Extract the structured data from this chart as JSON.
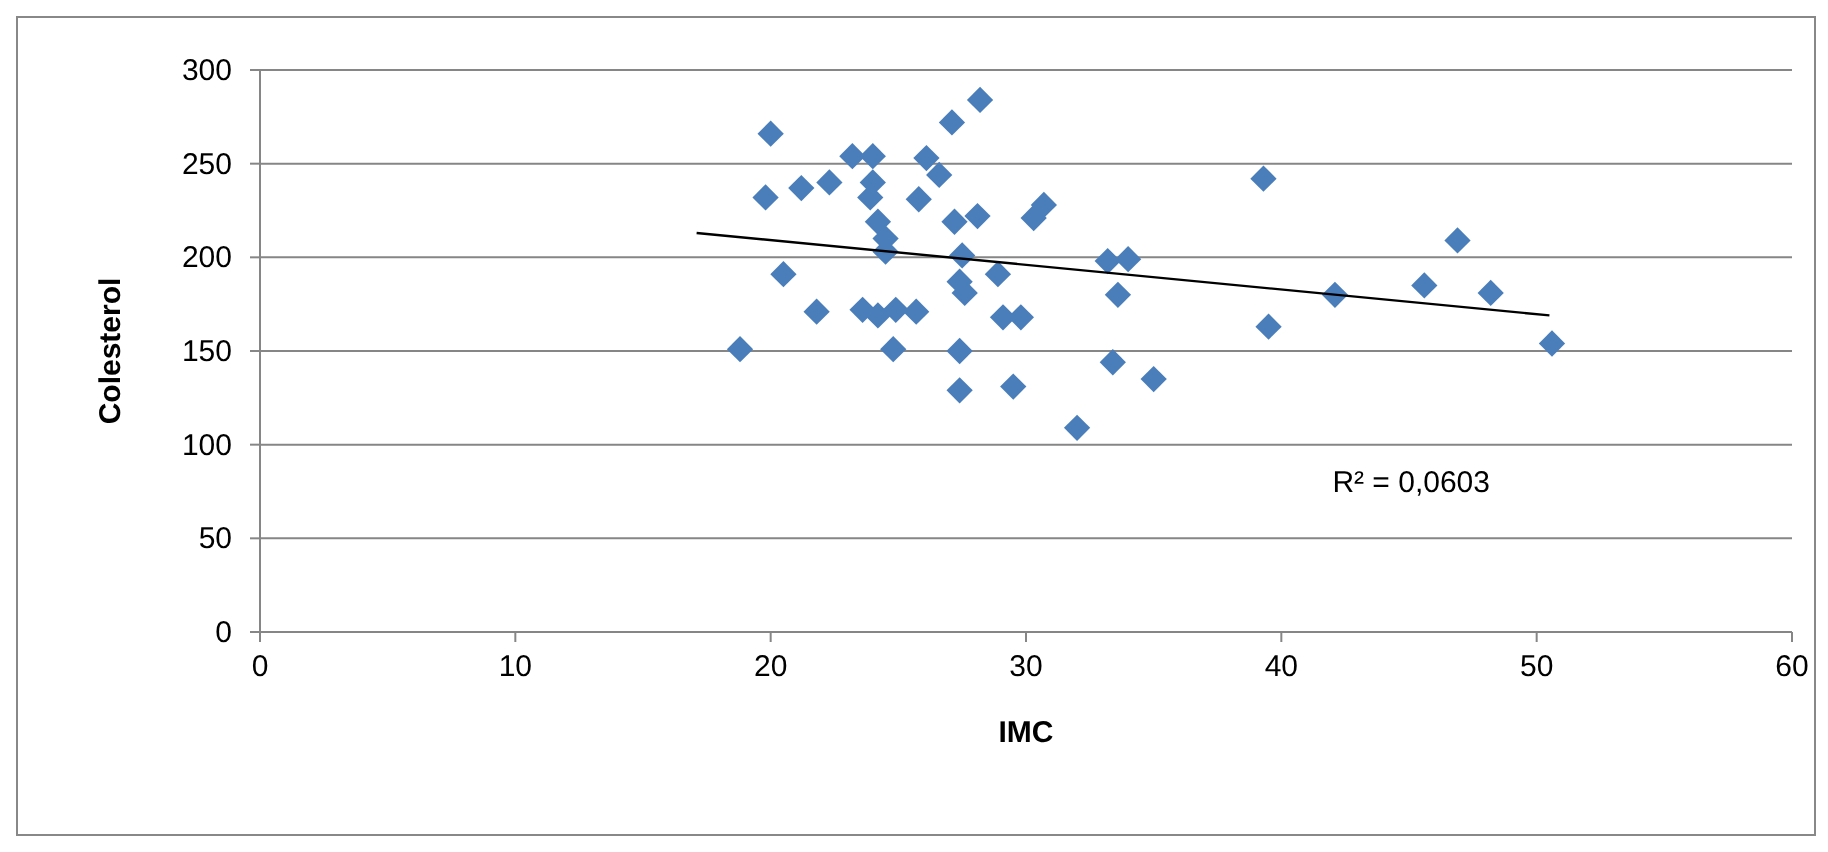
{
  "chart_data": {
    "type": "scatter",
    "xlabel": "IMC",
    "ylabel": "Colesterol",
    "xlim": [
      0,
      60
    ],
    "xticks": [
      0,
      10,
      20,
      30,
      40,
      50,
      60
    ],
    "ylim": [
      0,
      300
    ],
    "yticks": [
      0,
      50,
      100,
      150,
      200,
      250,
      300
    ],
    "grid": "y",
    "marker": "diamond",
    "annotations": [
      "R² = 0,0603"
    ],
    "series": [
      {
        "color": "#4a7ebb",
        "x": [
          18.8,
          20.0,
          19.8,
          20.5,
          21.2,
          21.8,
          22.3,
          23.2,
          24.0,
          24.0,
          23.9,
          24.2,
          24.5,
          24.5,
          23.6,
          24.2,
          24.9,
          25.7,
          24.8,
          26.1,
          26.6,
          25.8,
          27.1,
          28.2,
          27.2,
          28.1,
          27.5,
          27.4,
          27.6,
          28.9,
          29.1,
          29.8,
          27.4,
          27.4,
          29.5,
          30.3,
          30.7,
          32.0,
          33.2,
          34.0,
          33.6,
          33.4,
          35.0,
          39.3,
          39.5,
          42.1,
          45.6,
          46.9,
          48.2,
          50.6
        ],
        "values": [
          151,
          266,
          232,
          191,
          237,
          171,
          240,
          254,
          254,
          240,
          232,
          219,
          210,
          203,
          172,
          169,
          172,
          171,
          151,
          253,
          244,
          231,
          272,
          284,
          219,
          222,
          201,
          187,
          181,
          191,
          168,
          168,
          150,
          129,
          131,
          221,
          228,
          109,
          198,
          199,
          180,
          144,
          135,
          242,
          163,
          180,
          185,
          209,
          181,
          154
        ]
      },
      {
        "type": "line",
        "color": "#000000",
        "marker": "none",
        "x": [
          17.1,
          50.5
        ],
        "values": [
          213,
          169
        ]
      }
    ]
  }
}
